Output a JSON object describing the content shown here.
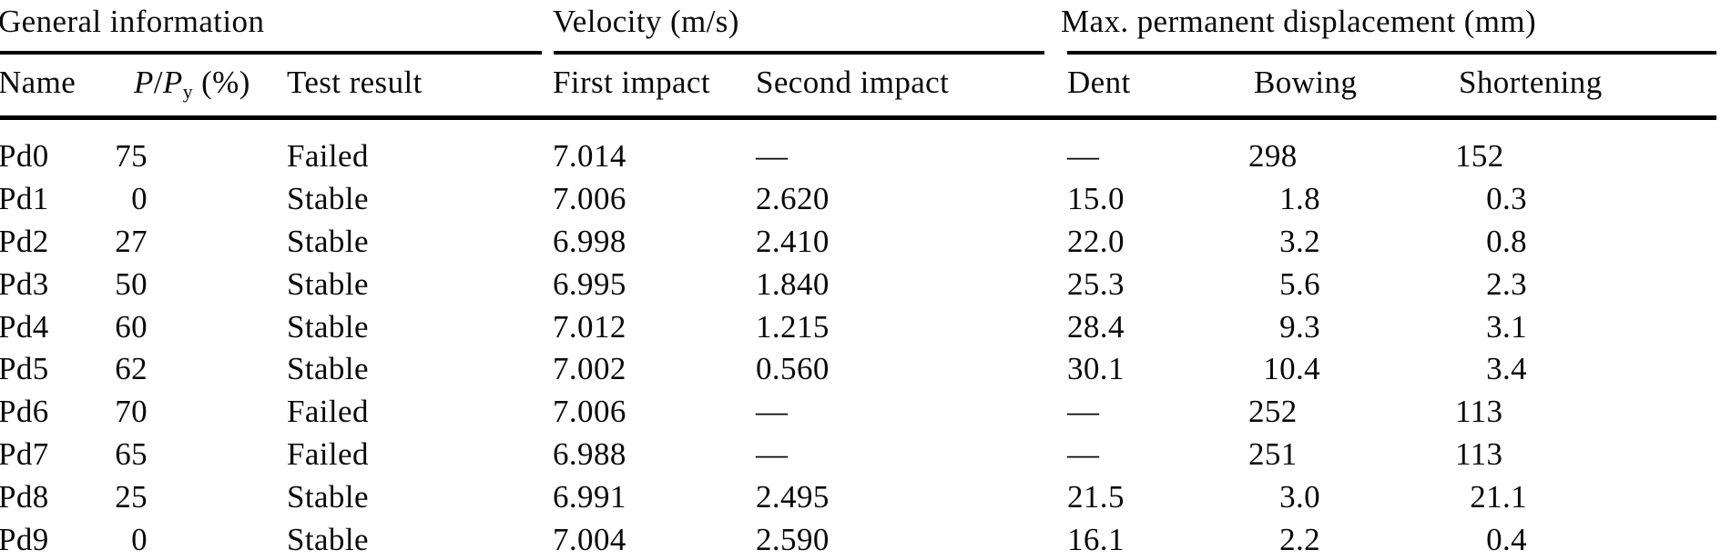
{
  "colors": {
    "background": "#ffffff",
    "text": "#0a0a0a",
    "rule": "#000000"
  },
  "table": {
    "groups": [
      {
        "label": "General information"
      },
      {
        "label": "Velocity (m/s)"
      },
      {
        "label": "Max. permanent displacement (mm)"
      }
    ],
    "ppy_header": {
      "p1": "P",
      "slash": "/",
      "p2": "P",
      "sub": "y",
      "unit": " (%)"
    },
    "headers": {
      "name": "Name",
      "test_result": "Test result",
      "first_impact": "First impact",
      "second_impact": "Second impact",
      "dent": "Dent",
      "bowing": "Bowing",
      "shortening": "Shortening"
    },
    "rows": [
      {
        "name": "Pd0",
        "ppy": "75",
        "test_result": "Failed",
        "first_impact": "7.014",
        "second_impact": "—",
        "dent": "—",
        "bowing": "298",
        "shortening": "152"
      },
      {
        "name": "Pd1",
        "ppy": "0",
        "test_result": "Stable",
        "first_impact": "7.006",
        "second_impact": "2.620",
        "dent": "15.0",
        "bowing": "1.8",
        "shortening": "0.3"
      },
      {
        "name": "Pd2",
        "ppy": "27",
        "test_result": "Stable",
        "first_impact": "6.998",
        "second_impact": "2.410",
        "dent": "22.0",
        "bowing": "3.2",
        "shortening": "0.8"
      },
      {
        "name": "Pd3",
        "ppy": "50",
        "test_result": "Stable",
        "first_impact": "6.995",
        "second_impact": "1.840",
        "dent": "25.3",
        "bowing": "5.6",
        "shortening": "2.3"
      },
      {
        "name": "Pd4",
        "ppy": "60",
        "test_result": "Stable",
        "first_impact": "7.012",
        "second_impact": "1.215",
        "dent": "28.4",
        "bowing": "9.3",
        "shortening": "3.1"
      },
      {
        "name": "Pd5",
        "ppy": "62",
        "test_result": "Stable",
        "first_impact": "7.002",
        "second_impact": "0.560",
        "dent": "30.1",
        "bowing": "10.4",
        "shortening": "3.4"
      },
      {
        "name": "Pd6",
        "ppy": "70",
        "test_result": "Failed",
        "first_impact": "7.006",
        "second_impact": "—",
        "dent": "—",
        "bowing": "252",
        "shortening": "113"
      },
      {
        "name": "Pd7",
        "ppy": "65",
        "test_result": "Failed",
        "first_impact": "6.988",
        "second_impact": "—",
        "dent": "—",
        "bowing": "251",
        "shortening": "113"
      },
      {
        "name": "Pd8",
        "ppy": "25",
        "test_result": "Stable",
        "first_impact": "6.991",
        "second_impact": "2.495",
        "dent": "21.5",
        "bowing": "3.0",
        "shortening": "21.1"
      },
      {
        "name": "Pd9",
        "ppy": "0",
        "test_result": "Stable",
        "first_impact": "7.004",
        "second_impact": "2.590",
        "dent": "16.1",
        "bowing": "2.2",
        "shortening": "0.4"
      }
    ]
  }
}
